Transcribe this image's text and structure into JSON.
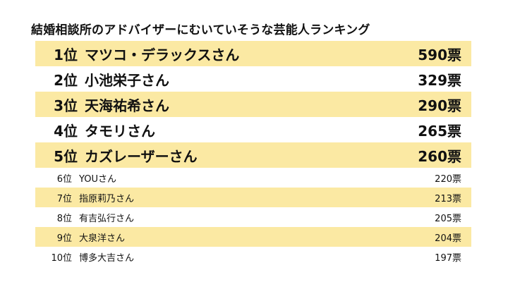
{
  "title": "結婚相談所のアドバイザーにむいていそうな芸能人ランキング",
  "ranking": [
    {
      "rank": "1位",
      "name": "マツコ・デラックスさん",
      "votes": "590票"
    },
    {
      "rank": "2位",
      "name": "小池栄子さん",
      "votes": "329票"
    },
    {
      "rank": "3位",
      "name": "天海祐希さん",
      "votes": "290票"
    },
    {
      "rank": "4位",
      "name": "タモリさん",
      "votes": "265票"
    },
    {
      "rank": "5位",
      "name": "カズレーザーさん",
      "votes": "260票"
    },
    {
      "rank": "6位",
      "name": "YOUさん",
      "votes": "220票"
    },
    {
      "rank": "7位",
      "name": "指原莉乃さん",
      "votes": "213票"
    },
    {
      "rank": "8位",
      "name": "有吉弘行さん",
      "votes": "205票"
    },
    {
      "rank": "9位",
      "name": "大泉洋さん",
      "votes": "204票"
    },
    {
      "rank": "10位",
      "name": "博多大吉さん",
      "votes": "197票"
    }
  ],
  "colors": {
    "stripe": "#fbe9a3",
    "background": "#ffffff",
    "text": "#111111"
  }
}
